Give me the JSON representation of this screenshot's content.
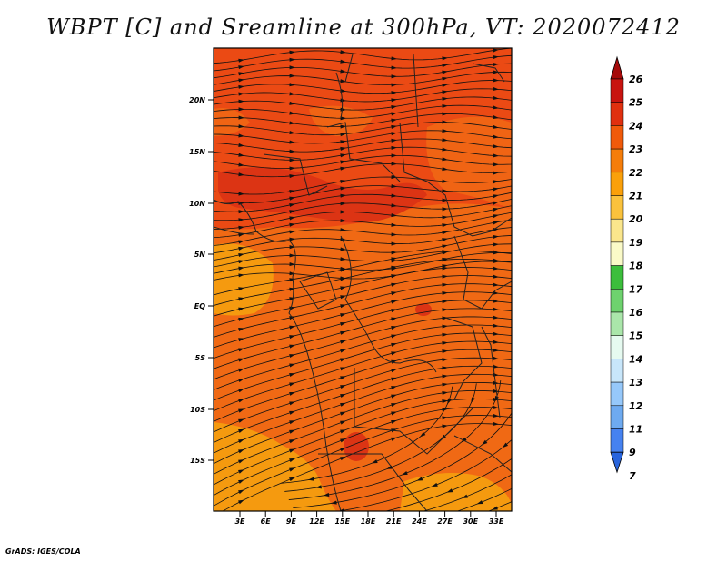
{
  "title": "WBPT [C] and Sreamline at 300hPa, VT: 2020072412",
  "footer": "GrADS: IGES/COLA",
  "axes": {
    "lat_ticks": [
      "20N",
      "15N",
      "10N",
      "5N",
      "EQ",
      "5S",
      "10S",
      "15S"
    ],
    "lon_ticks": [
      "3E",
      "6E",
      "9E",
      "12E",
      "15E",
      "18E",
      "21E",
      "24E",
      "27E",
      "30E",
      "33E"
    ]
  },
  "colorbar": {
    "labels": [
      "26",
      "25",
      "24",
      "23",
      "22",
      "21",
      "20",
      "19",
      "18",
      "17",
      "16",
      "15",
      "14",
      "13",
      "12",
      "11",
      "9",
      "7"
    ],
    "colors": [
      "#a50a0a",
      "#c8140f",
      "#e0300f",
      "#f05a0a",
      "#f57d0a",
      "#faa00a",
      "#fac23c",
      "#fae68c",
      "#fafac8",
      "#3cbe3c",
      "#6ed26e",
      "#aae6aa",
      "#e6faf0",
      "#c8e6fa",
      "#96c8fa",
      "#6eaaf0",
      "#4682f0",
      "#2864dc"
    ]
  },
  "legend": {
    "field": "WBPT [C]",
    "overlay": "Streamlines at 300hPa",
    "valid_time": "2020072412"
  }
}
